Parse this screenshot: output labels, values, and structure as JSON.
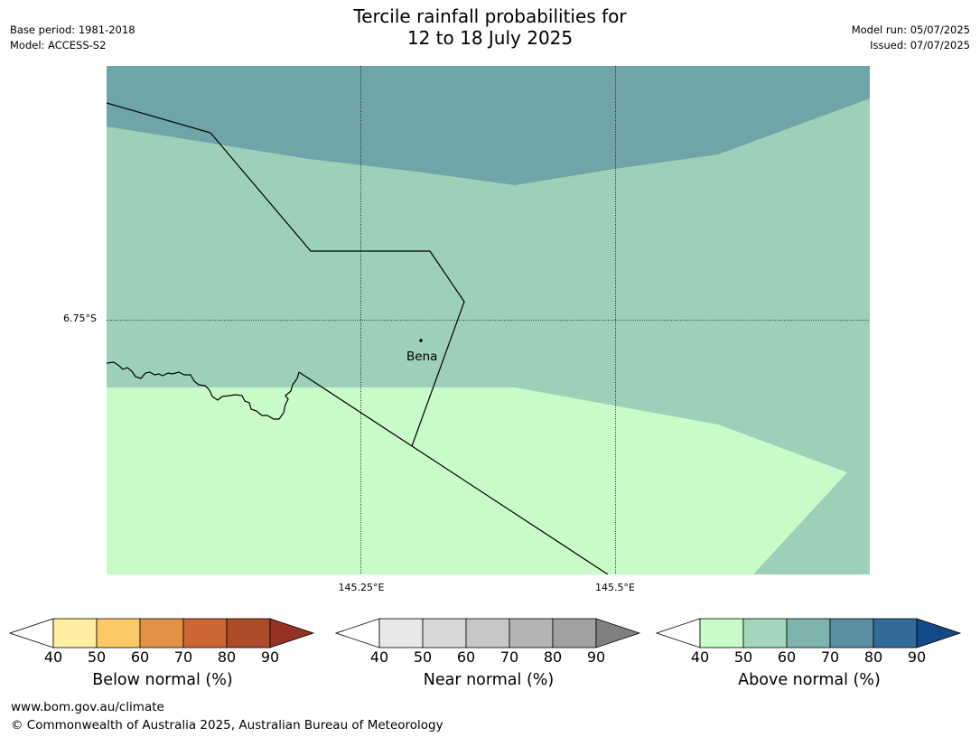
{
  "title": {
    "line1": "Tercile rainfall probabilities for",
    "line2": "12 to 18 July 2025"
  },
  "meta_left": {
    "base_period": "Base period: 1981-2018",
    "model": "Model: ACCESS-S2"
  },
  "meta_right": {
    "model_run": "Model run: 05/07/2025",
    "issued": "Issued: 07/07/2025"
  },
  "map": {
    "lat_label": "6.75°S",
    "lon_labels": [
      "145.25°E",
      "145.5°E"
    ],
    "place": "Bena",
    "zone_colors": {
      "above_60_70": "#6fa5a8",
      "above_50_60": "#9dd0b9",
      "above_40_50": "#c9fbc8"
    },
    "boundary_color": "#000000",
    "gridline_style": "dotted"
  },
  "colorbars": [
    {
      "caption": "Below normal (%)",
      "ticks": [
        "40",
        "50",
        "60",
        "70",
        "80",
        "90"
      ],
      "colors": [
        "#ffffff",
        "#ffeea1",
        "#fdc966",
        "#e19245",
        "#cc6633",
        "#ad4a27",
        "#953222"
      ]
    },
    {
      "caption": "Near normal (%)",
      "ticks": [
        "40",
        "50",
        "60",
        "70",
        "80",
        "90"
      ],
      "colors": [
        "#ffffff",
        "#e8e8e8",
        "#d8d8d8",
        "#c7c7c7",
        "#b4b4b4",
        "#a1a1a1",
        "#808080"
      ]
    },
    {
      "caption": "Above normal (%)",
      "ticks": [
        "40",
        "50",
        "60",
        "70",
        "80",
        "90"
      ],
      "colors": [
        "#ffffff",
        "#c9fbc8",
        "#a3d7bb",
        "#7fb3ad",
        "#5a8ea0",
        "#326a98",
        "#124a86"
      ]
    }
  ],
  "footer": {
    "url": "www.bom.gov.au/climate",
    "copyright": "© Commonwealth of Australia 2025, Australian Bureau of Meteorology"
  }
}
